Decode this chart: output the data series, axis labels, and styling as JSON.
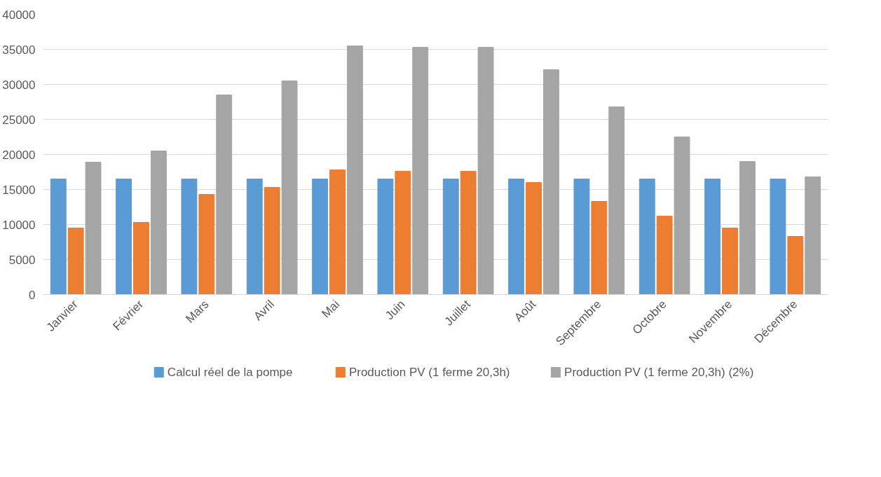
{
  "chart_data": {
    "type": "bar",
    "categories": [
      "Janvier",
      "Février",
      "Mars",
      "Avril",
      "Mai",
      "Juin",
      "Juillet",
      "Août",
      "Septembre",
      "Octobre",
      "Novembre",
      "Décembre"
    ],
    "series": [
      {
        "name": "Calcul réel de la pompe",
        "color": "#5b9bd5",
        "values": [
          16500,
          16500,
          16500,
          16500,
          16500,
          16500,
          16500,
          16500,
          16500,
          16500,
          16500,
          16500
        ]
      },
      {
        "name": "Production PV (1 ferme 20,3h)",
        "color": "#ed7d31",
        "values": [
          9500,
          10300,
          14300,
          15300,
          17800,
          17600,
          17600,
          16000,
          13300,
          11200,
          9500,
          8300
        ]
      },
      {
        "name": "Production PV (1 ferme 20,3h) (2%)",
        "color": "#a5a5a5",
        "values": [
          18900,
          20500,
          28500,
          30500,
          35500,
          35300,
          35300,
          32100,
          26800,
          22500,
          19000,
          16800
        ]
      }
    ],
    "ylim": [
      0,
      40000
    ],
    "yticks": [
      0,
      5000,
      10000,
      15000,
      20000,
      25000,
      30000,
      35000,
      40000
    ],
    "grid": "y",
    "legend": "bottom"
  }
}
